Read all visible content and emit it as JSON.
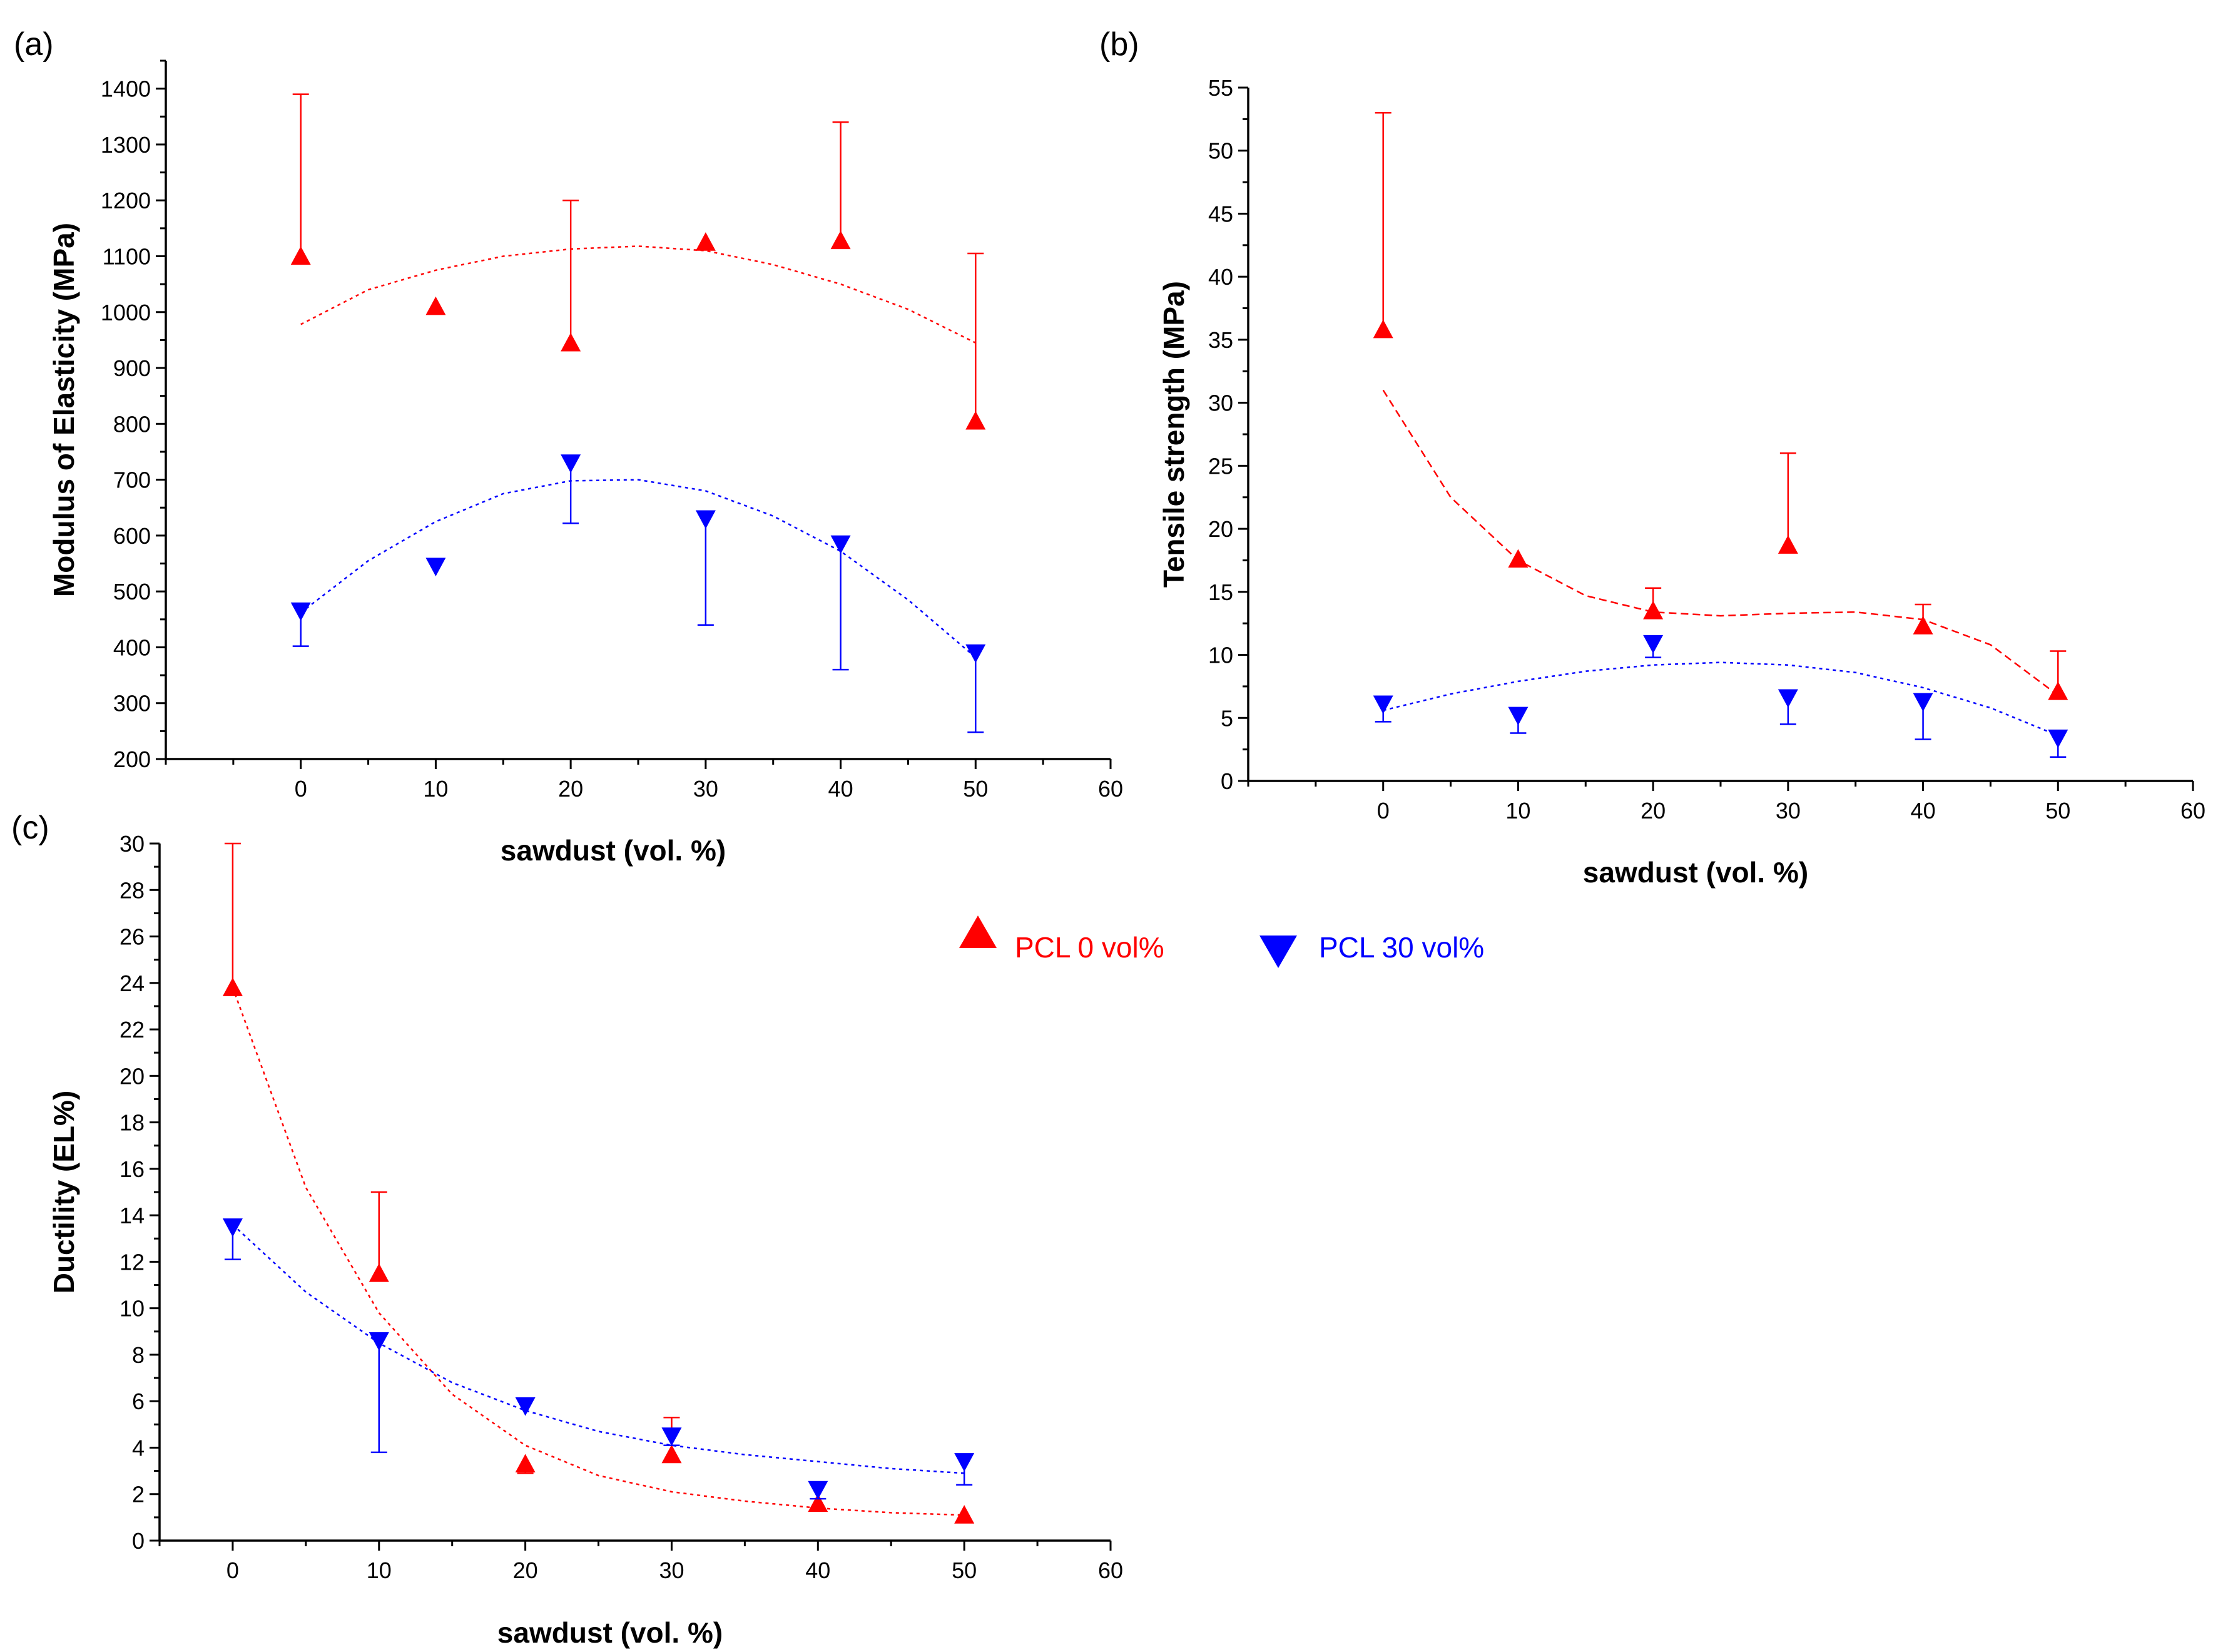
{
  "colors": {
    "pcl0": "#ff0000",
    "pcl30": "#0000ff",
    "axis": "#000000"
  },
  "legend": [
    {
      "label": "PCL  0 vol%",
      "marker": "triangle-up",
      "color": "#ff0000"
    },
    {
      "label": "PCL 30 vol%",
      "marker": "triangle-down",
      "color": "#0000ff"
    }
  ],
  "chart_data": [
    {
      "panel": "(a)",
      "type": "scatter",
      "xlabel": "sawdust (vol. %)",
      "ylabel": "Modulus of Elasticity (MPa)",
      "xlim": [
        -10,
        60
      ],
      "ylim": [
        200,
        1450
      ],
      "xticks": [
        0,
        10,
        20,
        30,
        40,
        50,
        60
      ],
      "yticks": [
        200,
        300,
        400,
        500,
        600,
        700,
        800,
        900,
        1000,
        1100,
        1200,
        1300,
        1400
      ],
      "series": [
        {
          "name": "PCL  0 vol%",
          "marker": "triangle-up",
          "x": [
            0,
            10,
            20,
            30,
            40,
            50
          ],
          "y": [
            1100,
            1010,
            945,
            1125,
            1128,
            805
          ],
          "err_upper": [
            1390,
            null,
            1200,
            null,
            1340,
            1105
          ],
          "err_lower": [
            null,
            null,
            null,
            null,
            null,
            null
          ],
          "fit": [
            [
              0,
              978
            ],
            [
              5,
              1040
            ],
            [
              10,
              1075
            ],
            [
              15,
              1100
            ],
            [
              20,
              1113
            ],
            [
              25,
              1118
            ],
            [
              30,
              1110
            ],
            [
              35,
              1085
            ],
            [
              40,
              1050
            ],
            [
              45,
              1005
            ],
            [
              50,
              945
            ]
          ]
        },
        {
          "name": "PCL 30 vol%",
          "marker": "triangle-down",
          "x": [
            0,
            10,
            20,
            30,
            40,
            50
          ],
          "y": [
            465,
            545,
            730,
            630,
            585,
            390
          ],
          "err_upper": [
            null,
            null,
            null,
            null,
            null,
            null
          ],
          "err_lower": [
            402,
            null,
            622,
            440,
            360,
            248
          ],
          "fit": [
            [
              0,
              462
            ],
            [
              5,
              555
            ],
            [
              10,
              625
            ],
            [
              15,
              675
            ],
            [
              20,
              698
            ],
            [
              25,
              700
            ],
            [
              30,
              680
            ],
            [
              35,
              635
            ],
            [
              40,
              572
            ],
            [
              45,
              485
            ],
            [
              50,
              382
            ]
          ]
        }
      ]
    },
    {
      "panel": "(b)",
      "type": "scatter",
      "xlabel": "sawdust (vol. %)",
      "ylabel": "Tensile strength (MPa)",
      "xlim": [
        -10,
        60
      ],
      "ylim": [
        0,
        55
      ],
      "xticks": [
        0,
        10,
        20,
        30,
        40,
        50,
        60
      ],
      "yticks": [
        0,
        5,
        10,
        15,
        20,
        25,
        30,
        35,
        40,
        45,
        50,
        55
      ],
      "series": [
        {
          "name": "PCL  0 vol%",
          "marker": "triangle-up",
          "x": [
            0,
            10,
            20,
            30,
            40,
            50
          ],
          "y": [
            35.8,
            17.6,
            13.5,
            18.7,
            12.3,
            7.1
          ],
          "err_upper": [
            53,
            null,
            15.3,
            26,
            14,
            10.3
          ],
          "err_lower": [
            null,
            null,
            null,
            null,
            null,
            null
          ],
          "fit": [
            [
              0,
              31
            ],
            [
              5,
              22.5
            ],
            [
              10,
              17.5
            ],
            [
              15,
              14.7
            ],
            [
              20,
              13.4
            ],
            [
              25,
              13.1
            ],
            [
              30,
              13.3
            ],
            [
              35,
              13.4
            ],
            [
              40,
              12.8
            ],
            [
              45,
              10.8
            ],
            [
              50,
              6.8
            ]
          ]
        },
        {
          "name": "PCL 30 vol%",
          "marker": "triangle-down",
          "x": [
            0,
            10,
            20,
            30,
            40,
            50
          ],
          "y": [
            6.1,
            5.2,
            10.9,
            6.6,
            6.3,
            3.4
          ],
          "err_upper": [
            null,
            null,
            null,
            null,
            null,
            null
          ],
          "err_lower": [
            4.7,
            3.8,
            9.8,
            4.5,
            3.3,
            1.9
          ],
          "fit": [
            [
              0,
              5.6
            ],
            [
              5,
              6.9
            ],
            [
              10,
              7.9
            ],
            [
              15,
              8.7
            ],
            [
              20,
              9.2
            ],
            [
              25,
              9.4
            ],
            [
              30,
              9.2
            ],
            [
              35,
              8.6
            ],
            [
              40,
              7.4
            ],
            [
              45,
              5.8
            ],
            [
              50,
              3.6
            ]
          ]
        }
      ]
    },
    {
      "panel": "(c)",
      "type": "scatter",
      "xlabel": "sawdust (vol. %)",
      "ylabel": "Ductility (EL%)",
      "xlim": [
        -5,
        60
      ],
      "ylim": [
        0,
        30
      ],
      "xticks": [
        0,
        10,
        20,
        30,
        40,
        50,
        60
      ],
      "yticks": [
        0,
        2,
        4,
        6,
        8,
        10,
        12,
        14,
        16,
        18,
        20,
        22,
        24,
        26,
        28,
        30
      ],
      "series": [
        {
          "name": "PCL  0 vol%",
          "marker": "triangle-up",
          "x": [
            0,
            10,
            20,
            30,
            40,
            50
          ],
          "y": [
            23.8,
            11.5,
            3.3,
            3.7,
            1.6,
            1.1
          ],
          "err_upper": [
            30,
            15,
            null,
            5.3,
            null,
            null
          ],
          "err_lower": [
            null,
            null,
            2.9,
            null,
            null,
            null
          ],
          "fit": [
            [
              0,
              23.8
            ],
            [
              5,
              15.2
            ],
            [
              10,
              9.8
            ],
            [
              15,
              6.3
            ],
            [
              20,
              4.1
            ],
            [
              25,
              2.8
            ],
            [
              30,
              2.1
            ],
            [
              35,
              1.7
            ],
            [
              40,
              1.4
            ],
            [
              45,
              1.2
            ],
            [
              50,
              1.1
            ]
          ]
        },
        {
          "name": "PCL 30 vol%",
          "marker": "triangle-down",
          "x": [
            0,
            10,
            20,
            30,
            40,
            50
          ],
          "y": [
            13.5,
            8.6,
            5.8,
            4.5,
            2.2,
            3.4
          ],
          "err_upper": [
            null,
            null,
            null,
            null,
            null,
            null
          ],
          "err_lower": [
            12.1,
            3.8,
            null,
            4.1,
            1.8,
            2.4
          ],
          "fit": [
            [
              0,
              13.6
            ],
            [
              5,
              10.7
            ],
            [
              10,
              8.5
            ],
            [
              15,
              6.8
            ],
            [
              20,
              5.6
            ],
            [
              25,
              4.7
            ],
            [
              30,
              4.1
            ],
            [
              35,
              3.7
            ],
            [
              40,
              3.4
            ],
            [
              45,
              3.1
            ],
            [
              50,
              2.9
            ]
          ]
        }
      ]
    }
  ]
}
